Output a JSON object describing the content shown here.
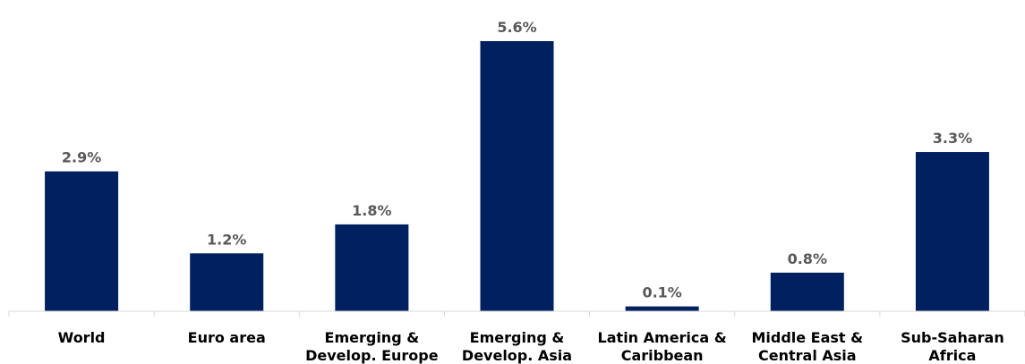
{
  "chart_data": {
    "type": "bar",
    "categories": [
      [
        "World"
      ],
      [
        "Euro area"
      ],
      [
        "Emerging &",
        "Develop. Europe"
      ],
      [
        "Emerging &",
        "Develop. Asia"
      ],
      [
        "Latin America &",
        "Caribbean"
      ],
      [
        "Middle East &",
        "Central Asia"
      ],
      [
        "Sub-Saharan",
        "Africa"
      ]
    ],
    "values": [
      2.9,
      1.2,
      1.8,
      5.6,
      0.1,
      0.8,
      3.3
    ],
    "data_labels": [
      "2.9%",
      "1.2%",
      "1.8%",
      "5.6%",
      "0.1%",
      "0.8%",
      "3.3%"
    ],
    "title": "",
    "xlabel": "",
    "ylabel": "",
    "ylim": [
      0,
      5.6
    ],
    "grid": false,
    "colors": {
      "bar": "#002060",
      "data_label": "#595959",
      "category_label": "#000000",
      "axis": "#d9d9d9"
    }
  }
}
